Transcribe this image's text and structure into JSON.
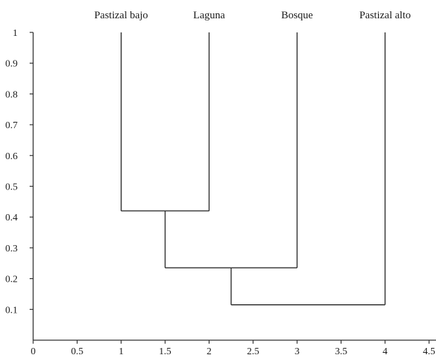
{
  "chart_data": {
    "type": "dendrogram",
    "leaves": [
      {
        "label": "Pastizal bajo",
        "x": 1
      },
      {
        "label": "Laguna",
        "x": 2
      },
      {
        "label": "Bosque",
        "x": 3
      },
      {
        "label": "Pastizal alto",
        "x": 4
      }
    ],
    "merges": [
      {
        "left": "Pastizal bajo",
        "right": "Laguna",
        "height": 0.42,
        "center": 1.5
      },
      {
        "left": "Pastizal bajo + Laguna",
        "right": "Bosque",
        "height": 0.235,
        "center": 2.25
      },
      {
        "left": "Pastizal bajo + Laguna + Bosque",
        "right": "Pastizal alto",
        "height": 0.115,
        "center": 3.125
      }
    ],
    "x_ticks": [
      "0",
      "0.5",
      "1",
      "1.5",
      "2",
      "2.5",
      "3",
      "3.5",
      "4",
      "4.5"
    ],
    "y_ticks": [
      "1",
      "0.9",
      "0.8",
      "0.7",
      "0.6",
      "0.5",
      "0.4",
      "0.3",
      "0.2",
      "0.1"
    ],
    "xlim": [
      0,
      4.5
    ],
    "ylim": [
      0,
      1
    ],
    "grid": false,
    "line_color": "#2b2b2b",
    "title": "",
    "xlabel": "",
    "ylabel": ""
  }
}
